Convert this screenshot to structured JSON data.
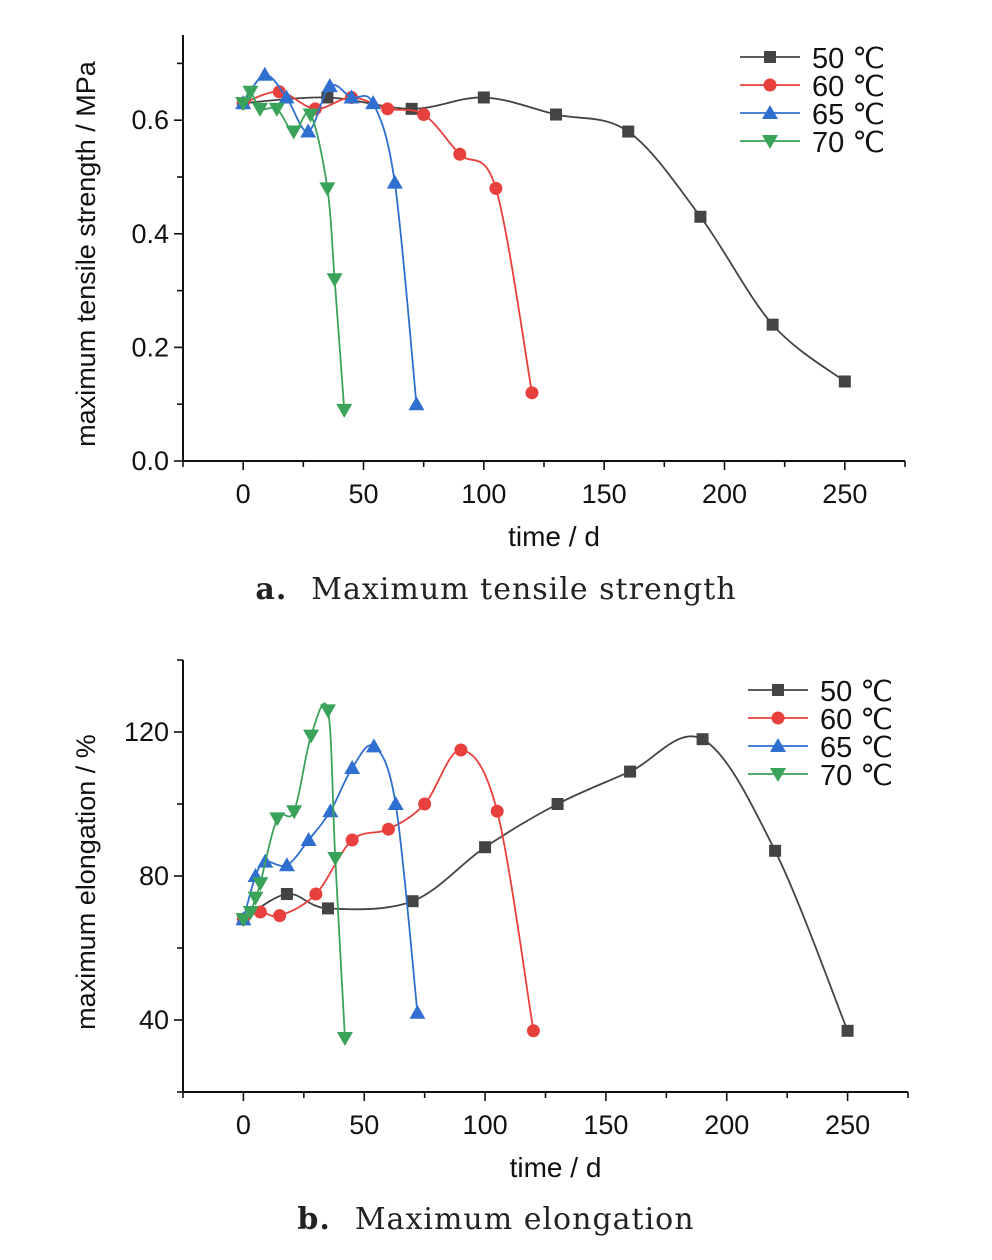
{
  "chart_data": [
    {
      "type": "line",
      "caption_letter": "a.",
      "caption_text": "Maximum tensile strength",
      "title": "",
      "xlabel": "time / d",
      "ylabel": "maximum tensile strength / MPa",
      "xlim": [
        -25,
        275
      ],
      "ylim": [
        0,
        0.75
      ],
      "xticks": [
        0,
        50,
        100,
        150,
        200,
        250
      ],
      "yticks": [
        0.0,
        0.2,
        0.4,
        0.6
      ],
      "ytick_labels": [
        "0.0",
        "0.2",
        "0.4",
        "0.6"
      ],
      "grid": false,
      "legend_position": "top-right",
      "series": [
        {
          "name": "50 ℃",
          "marker": "square",
          "color": "#444444",
          "x": [
            0,
            35,
            70,
            100,
            130,
            160,
            190,
            220,
            250
          ],
          "y": [
            0.63,
            0.64,
            0.62,
            0.64,
            0.61,
            0.58,
            0.43,
            0.24,
            0.14
          ]
        },
        {
          "name": "60 ℃",
          "marker": "circle",
          "color": "#e8403c",
          "x": [
            0,
            15,
            30,
            45,
            60,
            75,
            90,
            105,
            120
          ],
          "y": [
            0.63,
            0.65,
            0.62,
            0.64,
            0.62,
            0.61,
            0.54,
            0.48,
            0.12
          ]
        },
        {
          "name": "65 ℃",
          "marker": "triangle-up",
          "color": "#2f6fd0",
          "x": [
            0,
            9,
            18,
            27,
            36,
            45,
            54,
            63,
            72
          ],
          "y": [
            0.63,
            0.68,
            0.64,
            0.58,
            0.66,
            0.64,
            0.63,
            0.49,
            0.1
          ]
        },
        {
          "name": "70 ℃",
          "marker": "triangle-down",
          "color": "#3aa35a",
          "x": [
            0,
            3,
            7,
            14,
            21,
            28,
            35,
            38,
            42
          ],
          "y": [
            0.63,
            0.65,
            0.62,
            0.62,
            0.58,
            0.61,
            0.48,
            0.32,
            0.09
          ]
        }
      ]
    },
    {
      "type": "line",
      "caption_letter": "b.",
      "caption_text": "Maximum elongation",
      "title": "",
      "xlabel": "time / d",
      "ylabel": "maximum elongation / %",
      "xlim": [
        -25,
        275
      ],
      "ylim": [
        20,
        140
      ],
      "xticks": [
        0,
        50,
        100,
        150,
        200,
        250
      ],
      "yticks": [
        40,
        80,
        120
      ],
      "ytick_labels": [
        "40",
        "80",
        "120"
      ],
      "grid": false,
      "legend_position": "top-right",
      "series": [
        {
          "name": "50 ℃",
          "marker": "square",
          "color": "#444444",
          "x": [
            0,
            18,
            35,
            70,
            100,
            130,
            160,
            190,
            220,
            250
          ],
          "y": [
            68,
            75,
            71,
            73,
            88,
            100,
            109,
            118,
            87,
            37
          ]
        },
        {
          "name": "60 ℃",
          "marker": "circle",
          "color": "#e8403c",
          "x": [
            0,
            7,
            15,
            30,
            45,
            60,
            75,
            90,
            105,
            120
          ],
          "y": [
            68,
            70,
            69,
            75,
            90,
            93,
            100,
            115,
            98,
            37
          ]
        },
        {
          "name": "65 ℃",
          "marker": "triangle-up",
          "color": "#2f6fd0",
          "x": [
            0,
            5,
            9,
            18,
            27,
            36,
            45,
            54,
            63,
            72
          ],
          "y": [
            68,
            80,
            84,
            83,
            90,
            98,
            110,
            116,
            100,
            42
          ]
        },
        {
          "name": "70 ℃",
          "marker": "triangle-down",
          "color": "#3aa35a",
          "x": [
            0,
            3,
            5,
            7,
            14,
            21,
            28,
            35,
            38,
            42
          ],
          "y": [
            68,
            70,
            74,
            78,
            96,
            98,
            119,
            126,
            85,
            35
          ]
        }
      ]
    }
  ]
}
